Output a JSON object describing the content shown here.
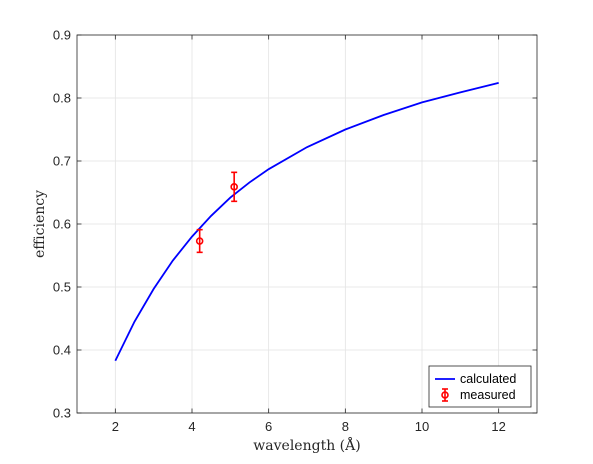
{
  "chart_data": {
    "type": "line",
    "title": "",
    "xlabel": "wavelength (Å)",
    "ylabel": "efficiency",
    "xlim": [
      1,
      13
    ],
    "ylim": [
      0.3,
      0.9
    ],
    "xticks": [
      2,
      4,
      6,
      8,
      10,
      12
    ],
    "yticks": [
      0.3,
      0.4,
      0.5,
      0.6,
      0.7,
      0.8,
      0.9
    ],
    "xtick_labels": [
      "2",
      "4",
      "6",
      "8",
      "10",
      "12"
    ],
    "ytick_labels": [
      "0.3",
      "0.4",
      "0.5",
      "0.6",
      "0.7",
      "0.8",
      "0.9"
    ],
    "grid": true,
    "legend_position": "bottom-right",
    "series": [
      {
        "name": "calculated",
        "type": "line",
        "color": "#0000ff",
        "x": [
          2,
          2.5,
          3,
          3.5,
          4,
          4.5,
          5,
          5.5,
          6,
          7,
          8,
          9,
          10,
          11,
          12
        ],
        "y": [
          0.383,
          0.445,
          0.497,
          0.542,
          0.58,
          0.613,
          0.642,
          0.666,
          0.687,
          0.722,
          0.75,
          0.773,
          0.793,
          0.809,
          0.824
        ]
      },
      {
        "name": "measured",
        "type": "errorbar",
        "color": "#ff0000",
        "x": [
          4.2,
          5.1
        ],
        "y": [
          0.573,
          0.659
        ],
        "err": [
          0.018,
          0.023
        ]
      }
    ]
  }
}
